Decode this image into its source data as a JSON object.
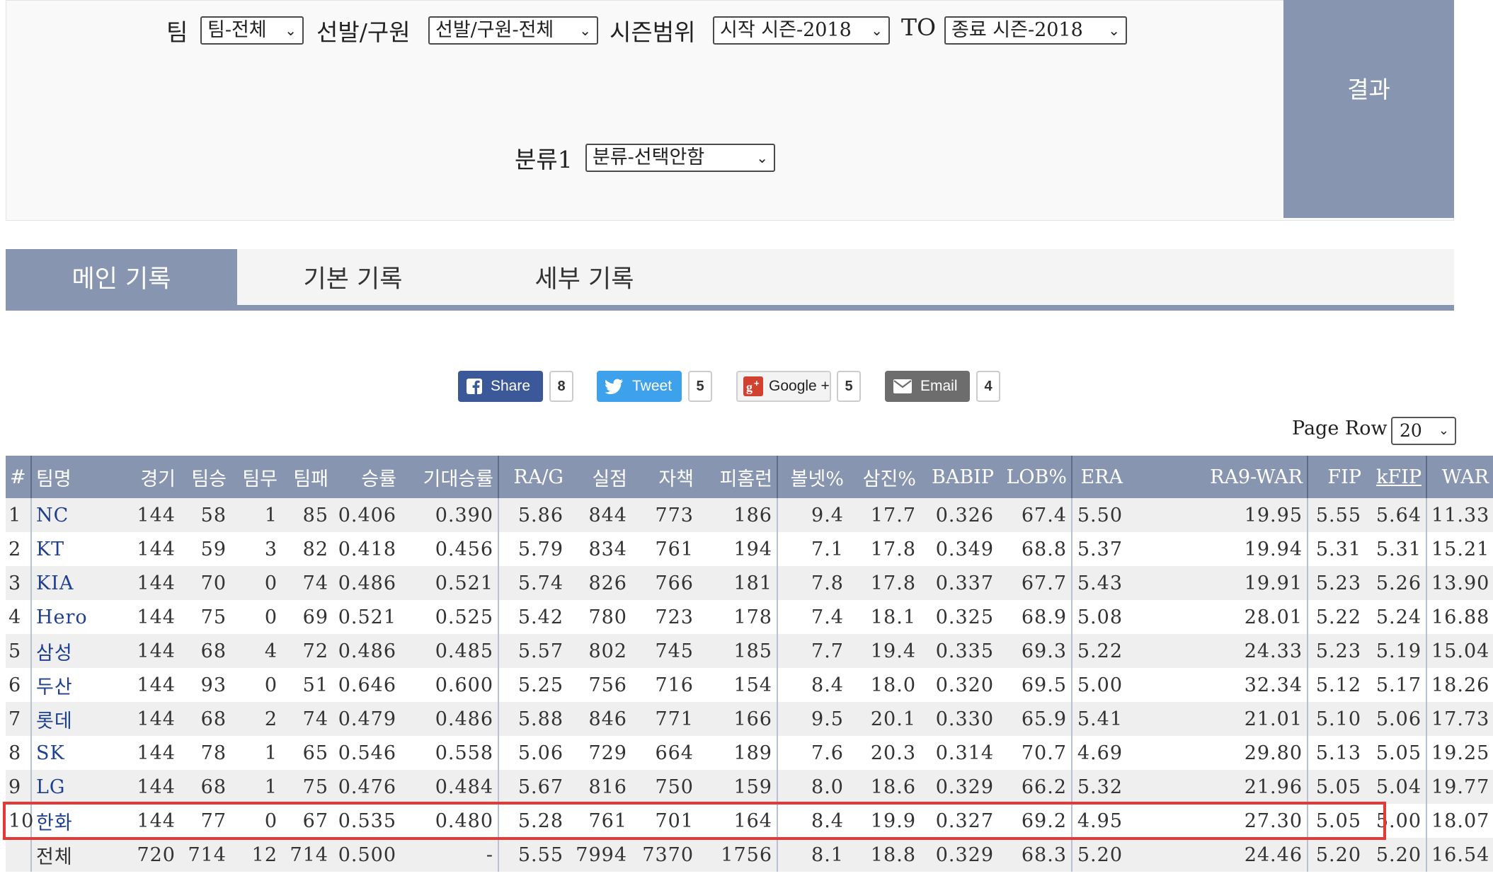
{
  "filters": {
    "team_label": "팀",
    "team_value": "팀-전체",
    "starter_label": "선발/구원",
    "starter_value": "선발/구원-전체",
    "season_label": "시즌범위",
    "season_start": "시작 시즌-2018",
    "to_label": "TO",
    "season_end": "종료 시즌-2018",
    "category_label": "분류1",
    "category_value": "분류-선택안함",
    "result_button": "결과"
  },
  "tabs": [
    "메인 기록",
    "기본 기록",
    "세부 기록"
  ],
  "social": {
    "share": {
      "label": "Share",
      "count": "8",
      "color": "#3b5998"
    },
    "tweet": {
      "label": "Tweet",
      "count": "5",
      "color": "#3ea1ec"
    },
    "google": {
      "label": "Google +",
      "count": "5"
    },
    "email": {
      "label": "Email",
      "count": "4",
      "color": "#6d6d6d"
    }
  },
  "page_row": {
    "label": "Page Row",
    "value": "20"
  },
  "table": {
    "columns": [
      "#",
      "팀명",
      "경기",
      "팀승",
      "팀무",
      "팀패",
      "승률",
      "기대승률",
      "RA/G",
      "실점",
      "자책",
      "피홈런",
      "볼넷%",
      "삼진%",
      "BABIP",
      "LOB%",
      "ERA",
      "RA9-WAR",
      "FIP",
      "kFIP",
      "WAR"
    ],
    "rows": [
      [
        "1",
        "NC",
        "144",
        "58",
        "1",
        "85",
        "0.406",
        "0.390",
        "5.86",
        "844",
        "773",
        "186",
        "9.4",
        "17.7",
        "0.326",
        "67.4",
        "5.50",
        "19.95",
        "5.55",
        "5.64",
        "11.33"
      ],
      [
        "2",
        "KT",
        "144",
        "59",
        "3",
        "82",
        "0.418",
        "0.456",
        "5.79",
        "834",
        "761",
        "194",
        "7.1",
        "17.8",
        "0.349",
        "68.8",
        "5.37",
        "19.94",
        "5.31",
        "5.31",
        "15.21"
      ],
      [
        "3",
        "KIA",
        "144",
        "70",
        "0",
        "74",
        "0.486",
        "0.521",
        "5.74",
        "826",
        "766",
        "181",
        "7.8",
        "17.8",
        "0.337",
        "67.7",
        "5.43",
        "19.91",
        "5.23",
        "5.26",
        "13.90"
      ],
      [
        "4",
        "Hero",
        "144",
        "75",
        "0",
        "69",
        "0.521",
        "0.525",
        "5.42",
        "780",
        "723",
        "178",
        "7.4",
        "18.1",
        "0.325",
        "68.9",
        "5.08",
        "28.01",
        "5.22",
        "5.24",
        "16.88"
      ],
      [
        "5",
        "삼성",
        "144",
        "68",
        "4",
        "72",
        "0.486",
        "0.485",
        "5.57",
        "802",
        "745",
        "185",
        "7.7",
        "19.4",
        "0.335",
        "69.3",
        "5.22",
        "24.33",
        "5.23",
        "5.19",
        "15.04"
      ],
      [
        "6",
        "두산",
        "144",
        "93",
        "0",
        "51",
        "0.646",
        "0.600",
        "5.25",
        "756",
        "716",
        "154",
        "8.4",
        "18.0",
        "0.320",
        "69.5",
        "5.00",
        "32.34",
        "5.12",
        "5.17",
        "18.26"
      ],
      [
        "7",
        "롯데",
        "144",
        "68",
        "2",
        "74",
        "0.479",
        "0.486",
        "5.88",
        "846",
        "771",
        "166",
        "9.5",
        "20.1",
        "0.330",
        "65.9",
        "5.41",
        "21.01",
        "5.10",
        "5.06",
        "17.73"
      ],
      [
        "8",
        "SK",
        "144",
        "78",
        "1",
        "65",
        "0.546",
        "0.558",
        "5.06",
        "729",
        "664",
        "189",
        "7.6",
        "20.3",
        "0.314",
        "70.7",
        "4.69",
        "29.80",
        "5.13",
        "5.05",
        "19.25"
      ],
      [
        "9",
        "LG",
        "144",
        "68",
        "1",
        "75",
        "0.476",
        "0.484",
        "5.67",
        "816",
        "750",
        "159",
        "8.0",
        "18.6",
        "0.329",
        "66.2",
        "5.32",
        "21.96",
        "5.05",
        "5.04",
        "19.77"
      ],
      [
        "10",
        "한화",
        "144",
        "77",
        "0",
        "67",
        "0.535",
        "0.480",
        "5.28",
        "761",
        "701",
        "164",
        "8.4",
        "19.9",
        "0.327",
        "69.2",
        "4.95",
        "27.30",
        "5.05",
        "5.00",
        "18.07"
      ],
      [
        "",
        "전체",
        "720",
        "714",
        "12",
        "714",
        "0.500",
        "-",
        "5.55",
        "7994",
        "7370",
        "1756",
        "8.1",
        "18.8",
        "0.329",
        "68.3",
        "5.20",
        "24.46",
        "5.20",
        "5.20",
        "16.54"
      ]
    ]
  },
  "colors": {
    "accent": "#8895b0",
    "highlight": "#e53935",
    "team_link": "#1f3f8f"
  }
}
